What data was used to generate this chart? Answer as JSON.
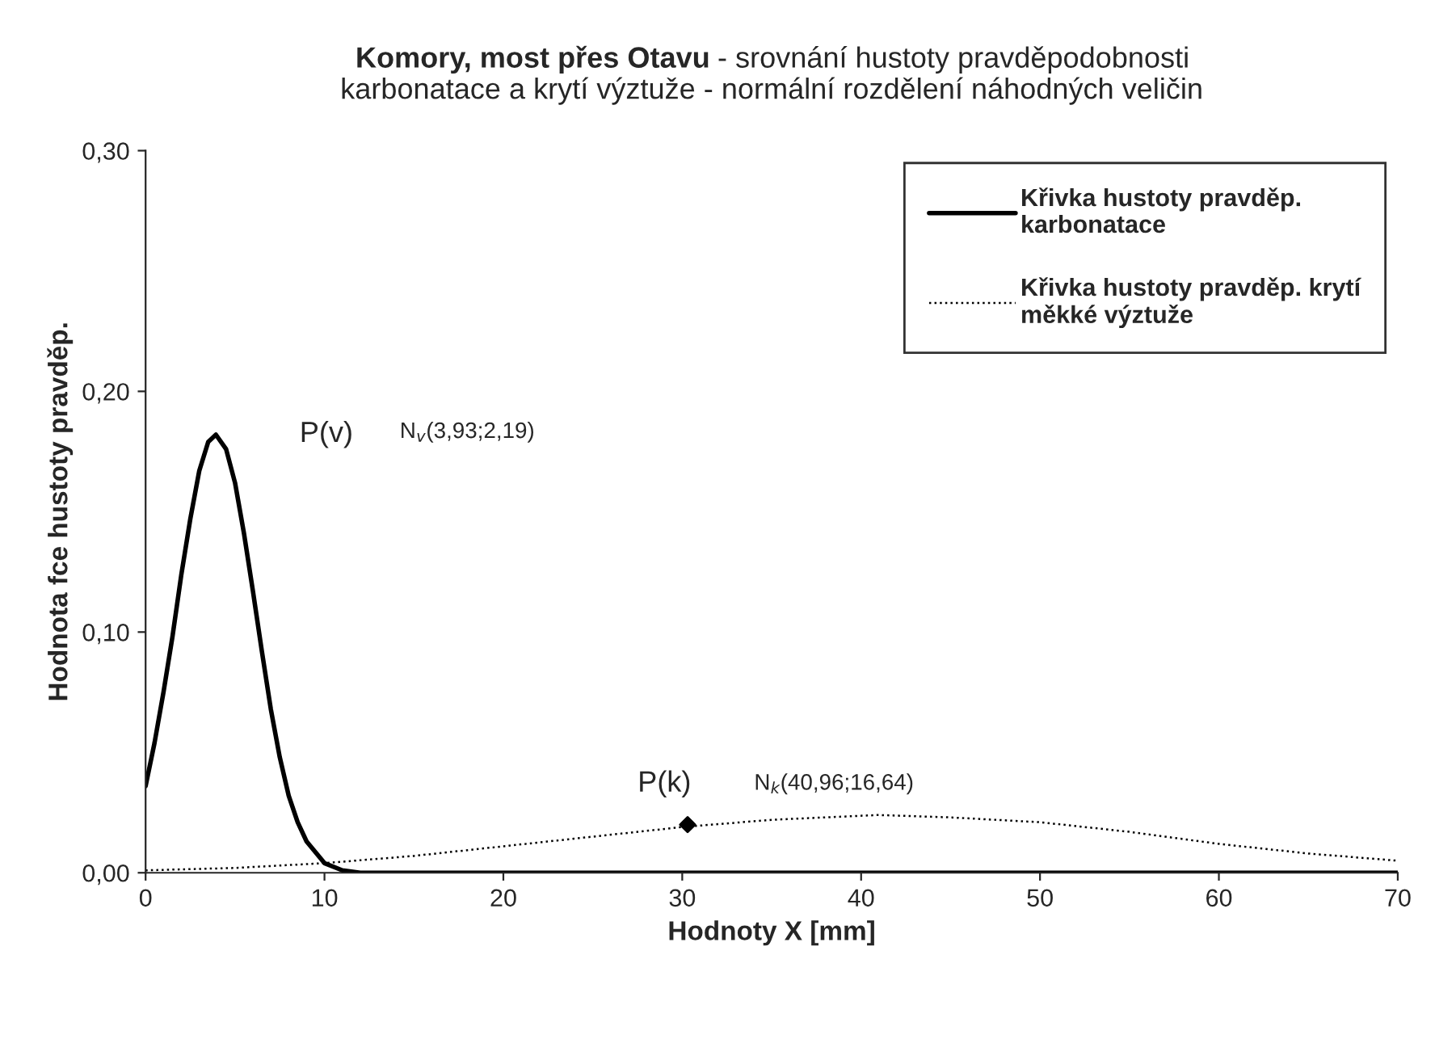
{
  "chart_data": {
    "type": "line",
    "title": "Komory, most přes Otavu",
    "subtitle": " - srovnání hustoty pravděpodobnosti\nkarbonatace a krytí výztuže - normální rozdělení náhodných veličin",
    "xlabel": "Hodnoty X [mm]",
    "ylabel": "Hodnota fce hustoty pravděp.",
    "xlim": [
      0,
      70
    ],
    "xticks": [
      0,
      10,
      20,
      30,
      40,
      50,
      60,
      70
    ],
    "ylim": [
      0,
      0.3
    ],
    "yticks": [
      {
        "value": 0,
        "label": "0,00"
      },
      {
        "value": 0.1,
        "label": "0,10"
      },
      {
        "value": 0.2,
        "label": "0,20"
      },
      {
        "value": 0.3,
        "label": "0,30"
      }
    ],
    "grid": false,
    "legend": "top right",
    "series": [
      {
        "name": "Křivka hustoty pravděp.\nkarbonatace",
        "color": "#000000",
        "line_style": "solid",
        "x": [
          0,
          0.5,
          1,
          1.5,
          2,
          2.5,
          3,
          3.5,
          3.93,
          4.5,
          5,
          5.5,
          6,
          6.5,
          7,
          7.5,
          8,
          8.5,
          9,
          10,
          11,
          12,
          14,
          20,
          30,
          40,
          50,
          60,
          70
        ],
        "values": [
          0.036,
          0.054,
          0.075,
          0.098,
          0.124,
          0.147,
          0.167,
          0.179,
          0.182,
          0.176,
          0.162,
          0.141,
          0.117,
          0.092,
          0.068,
          0.048,
          0.032,
          0.021,
          0.013,
          0.004,
          0.001,
          0.0,
          0.0,
          0.0,
          0.0,
          0.0,
          0.0,
          0.0,
          0.0
        ]
      },
      {
        "name": "Křivka hustoty pravděp. krytí\nměkké výztuže",
        "color": "#000000",
        "line_style": "dotted",
        "x": [
          0,
          5,
          10,
          15,
          20,
          25,
          30,
          35,
          40.96,
          45,
          50,
          55,
          60,
          65,
          70
        ],
        "values": [
          0.001,
          0.002,
          0.004,
          0.007,
          0.011,
          0.015,
          0.019,
          0.022,
          0.024,
          0.023,
          0.021,
          0.017,
          0.012,
          0.008,
          0.005
        ]
      },
      {
        "type": "scatter",
        "marker": "diamond",
        "color": "#000000",
        "x": [
          30.3
        ],
        "values": [
          0.02
        ]
      }
    ],
    "annotations": [
      "P(v)",
      "N$_{v}$(3,93;2,19)",
      "P(k)",
      "N$_{k}$(40,96;16,64)"
    ]
  }
}
